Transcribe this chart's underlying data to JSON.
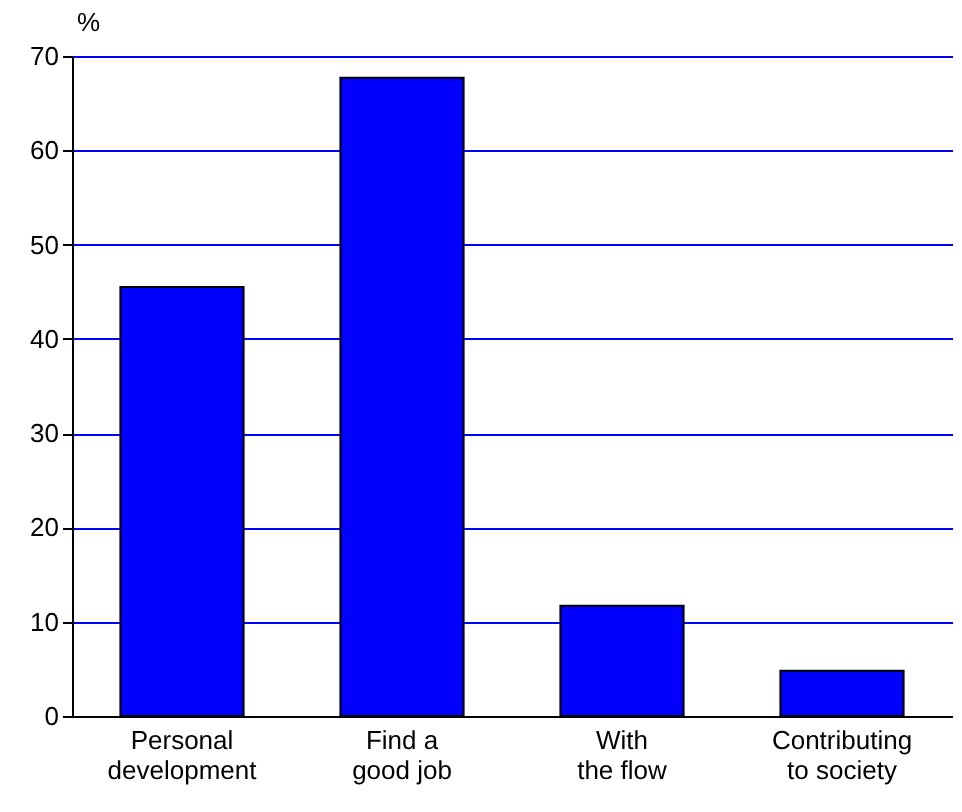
{
  "chart_data": {
    "type": "bar",
    "ylabel": "%",
    "categories": [
      "Personal development",
      "Find a good job",
      "With the flow",
      "Contributing to society"
    ],
    "values": [
      45.5,
      67.7,
      11.7,
      4.8
    ],
    "color": "#0000ff",
    "ylim": [
      0,
      70
    ],
    "yticks": [
      0,
      10,
      20,
      30,
      40,
      50,
      60,
      70
    ],
    "grid": true
  }
}
